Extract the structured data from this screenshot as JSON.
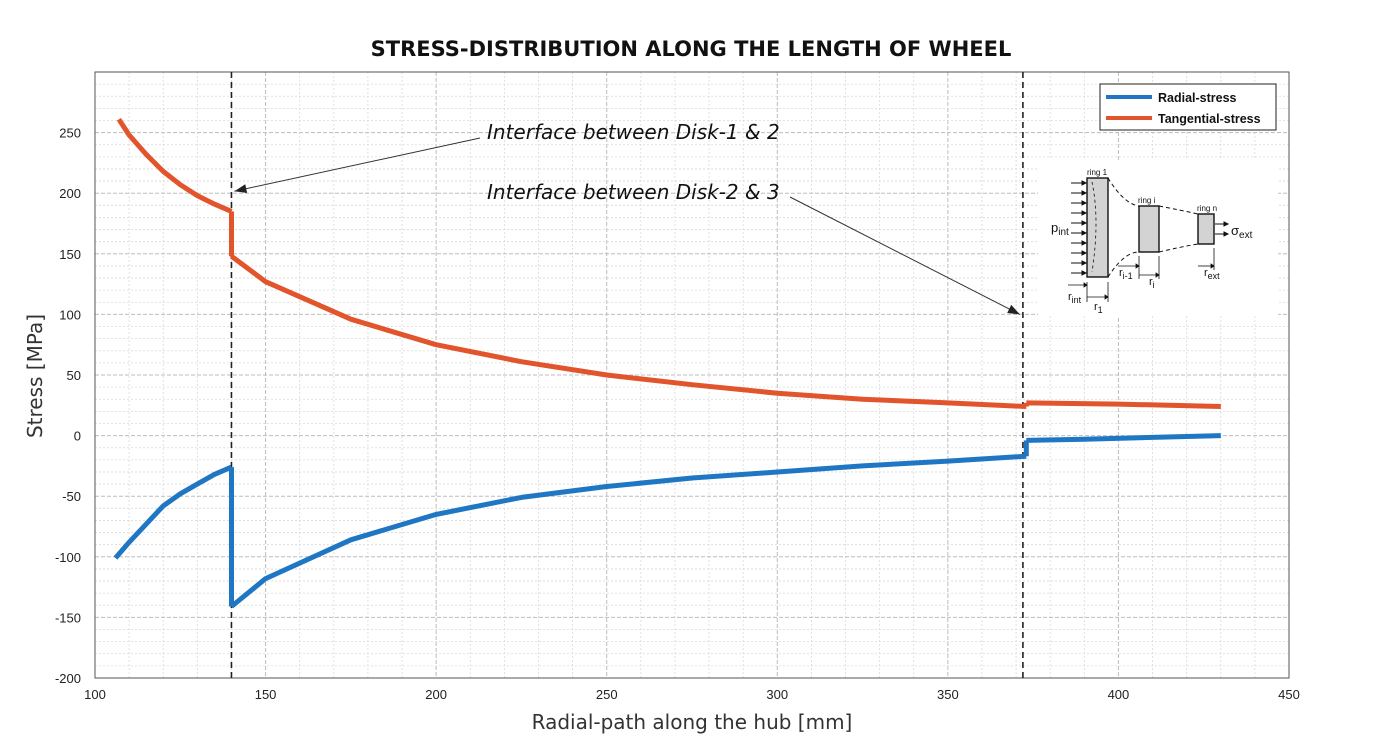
{
  "chart_data": {
    "type": "line",
    "title": "STRESS-DISTRIBUTION ALONG THE LENGTH OF WHEEL",
    "xlabel": "Radial-path along the hub [mm]",
    "ylabel": "Stress [MPa]",
    "xlim": [
      100,
      450
    ],
    "ylim": [
      -200,
      300
    ],
    "xticks": [
      100,
      150,
      200,
      250,
      300,
      350,
      400,
      450
    ],
    "yticks": [
      -200,
      -150,
      -100,
      -50,
      0,
      50,
      100,
      150,
      200,
      250
    ],
    "grid": true,
    "legend_position": "top-right",
    "colors": {
      "radial": "#1f77c4",
      "tangential": "#e2542b"
    },
    "series": [
      {
        "name": "Radial-stress",
        "segments": [
          {
            "x": [
              106,
              110,
              115,
              120,
              125,
              130,
              135,
              140
            ],
            "y": [
              -101,
              -88,
              -73,
              -58,
              -48,
              -40,
              -32,
              -26
            ]
          },
          {
            "x": [
              140,
              150,
              175,
              200,
              225,
              250,
              275,
              300,
              325,
              350,
              373
            ],
            "y": [
              -141,
              -118,
              -86,
              -65,
              -51,
              -42,
              -35,
              -30,
              -25,
              -21,
              -17
            ]
          },
          {
            "x": [
              373,
              390,
              410,
              430
            ],
            "y": [
              -4,
              -3,
              -1.5,
              0
            ]
          }
        ]
      },
      {
        "name": "Tangential-stress",
        "segments": [
          {
            "x": [
              107,
              110,
              115,
              120,
              125,
              130,
              135,
              140
            ],
            "y": [
              261,
              248,
              232,
              218,
              207,
              198,
              191,
              185
            ]
          },
          {
            "x": [
              140,
              150,
              175,
              200,
              225,
              250,
              275,
              300,
              325,
              350,
              373
            ],
            "y": [
              148,
              127,
              96,
              75,
              61,
              50,
              42,
              35,
              30,
              27,
              24
            ]
          },
          {
            "x": [
              373,
              400,
              430
            ],
            "y": [
              27,
              26,
              24
            ]
          }
        ]
      }
    ],
    "interfaces": [
      {
        "x": 140,
        "label": "Interface between Disk-1 & 2",
        "arrow_target_y": 200
      },
      {
        "x": 372,
        "label": "Interface between Disk-2 & 3",
        "arrow_target_y": 100
      }
    ]
  },
  "inset": {
    "ring_labels": [
      "ring 1",
      "ring i",
      "ring n"
    ],
    "p_int": "p",
    "p_int_sub": "int",
    "sigma_ext": "σ",
    "sigma_ext_sub": "ext",
    "r_int": "r",
    "r_int_sub": "int",
    "r1": "r",
    "r1_sub": "1",
    "ri1": "r",
    "ri1_sub": "i-1",
    "ri": "r",
    "ri_sub": "i",
    "r_ext": "r",
    "r_ext_sub": "ext"
  }
}
